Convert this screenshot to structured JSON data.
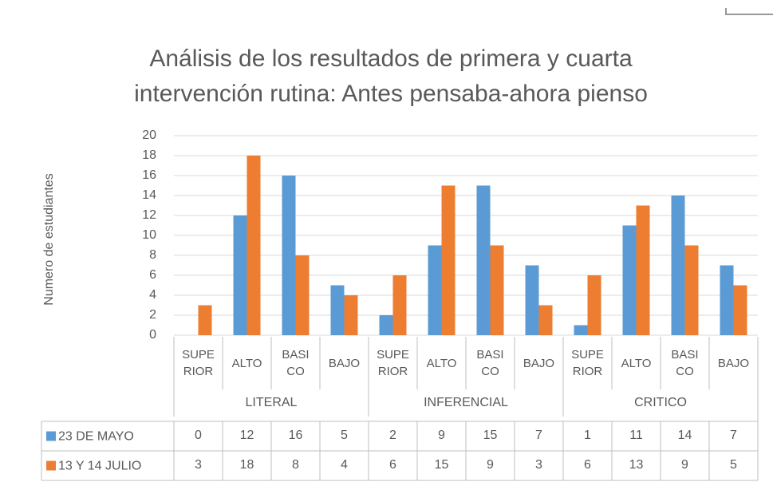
{
  "chart_data": {
    "type": "bar",
    "title": "Análisis de los resultados de primera y cuarta intervención rutina: Antes pensaba-ahora pienso",
    "y_label": "Numero de estudiantes",
    "categories": [
      "SUPERIOR",
      "ALTO",
      "BASICO",
      "BAJO",
      "SUPERIOR",
      "ALTO",
      "BASICO",
      "BAJO",
      "SUPERIOR",
      "ALTO",
      "BASICO",
      "BAJO"
    ],
    "groups": [
      "LITERAL",
      "INFERENCIAL",
      "CRITICO"
    ],
    "series": [
      {
        "name": "23 DE MAYO",
        "color": "#5b9bd5",
        "values": [
          0,
          12,
          16,
          5,
          2,
          9,
          15,
          7,
          1,
          11,
          14,
          7
        ]
      },
      {
        "name": "13 Y 14 JULIO",
        "color": "#ed7d31",
        "values": [
          3,
          18,
          8,
          4,
          6,
          15,
          9,
          3,
          6,
          13,
          9,
          5
        ]
      }
    ],
    "ylim": [
      0,
      20
    ],
    "yticks": [
      0,
      2,
      4,
      6,
      8,
      10,
      12,
      14,
      16,
      18,
      20
    ],
    "grid": true,
    "data_table": true
  }
}
